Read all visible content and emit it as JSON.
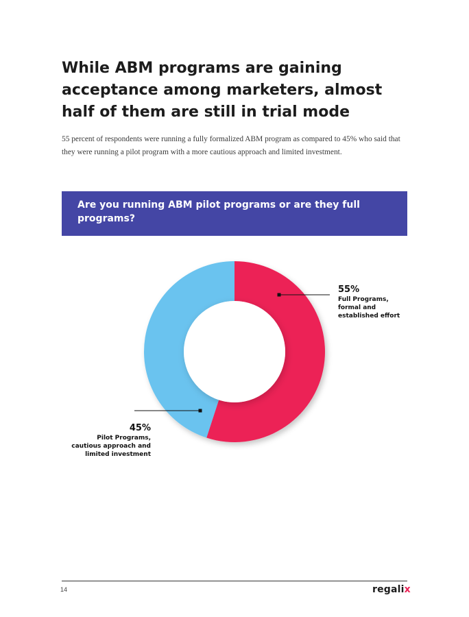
{
  "page": {
    "title": "While ABM programs are gaining acceptance among marketers, almost half of them are still in trial mode",
    "intro": "55 percent of respondents were running a fully formalized ABM program as compared to 45% who said that they were running a pilot program with a more cautious approach and limited investment.",
    "page_number": "14"
  },
  "question": {
    "text": "Are you running ABM pilot programs or are they full programs?",
    "banner_color": "#4446a5"
  },
  "callouts": {
    "full": {
      "percent": "55%",
      "label": "Full Programs, formal and established effort"
    },
    "pilot": {
      "percent": "45%",
      "label": "Pilot Programs, cautious approach and limited investment"
    }
  },
  "brand": {
    "name_main": "regali",
    "name_accent": "x",
    "accent_color": "#ec2156"
  },
  "chart_data": {
    "type": "pie",
    "variant": "donut",
    "categories": [
      "Full Programs, formal and established effort",
      "Pilot Programs, cautious approach and limited investment"
    ],
    "values": [
      55,
      45
    ],
    "colors": [
      "#ec2156",
      "#6ac3ef"
    ],
    "start_angle_deg": 0,
    "direction": "clockwise",
    "title": "Are you running ABM pilot programs or are they full programs?"
  }
}
